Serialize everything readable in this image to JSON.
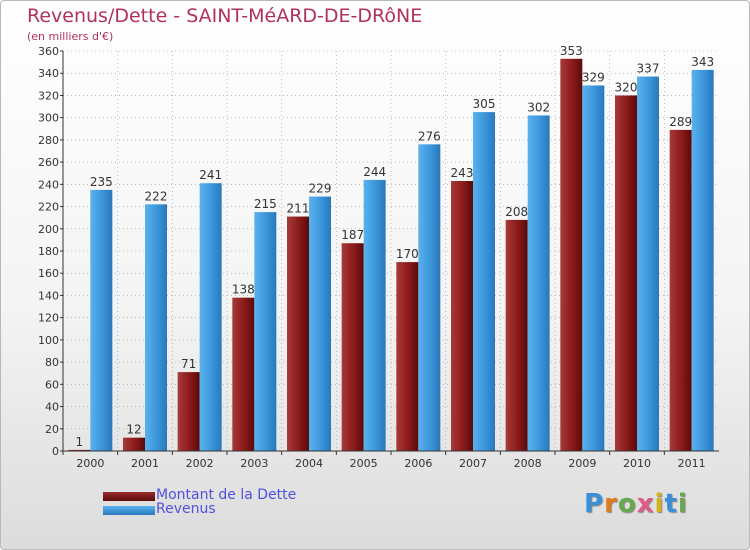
{
  "title": "Revenus/Dette - SAINT-MéARD-DE-DRôNE",
  "subtitle": "(en milliers d'€)",
  "logo": "Proxiti",
  "colors": {
    "debt": "#8b1a1a",
    "revenue": "#3b95da",
    "axis": "#333333",
    "grid": "#999999"
  },
  "chart_data": {
    "type": "bar",
    "categories": [
      "2000",
      "2001",
      "2002",
      "2003",
      "2004",
      "2005",
      "2006",
      "2007",
      "2008",
      "2009",
      "2010",
      "2011"
    ],
    "series": [
      {
        "name": "Montant de la Dette",
        "values": [
          1,
          12,
          71,
          138,
          211,
          187,
          170,
          243,
          208,
          353,
          320,
          289
        ]
      },
      {
        "name": "Revenus",
        "values": [
          235,
          222,
          241,
          215,
          229,
          244,
          276,
          305,
          302,
          329,
          337,
          343
        ]
      }
    ],
    "ylim": [
      0,
      360
    ],
    "yticks": [
      0,
      20,
      40,
      60,
      80,
      100,
      120,
      140,
      160,
      180,
      200,
      220,
      240,
      260,
      280,
      300,
      320,
      340,
      360
    ],
    "grid": true,
    "legend": "bottom-left"
  }
}
